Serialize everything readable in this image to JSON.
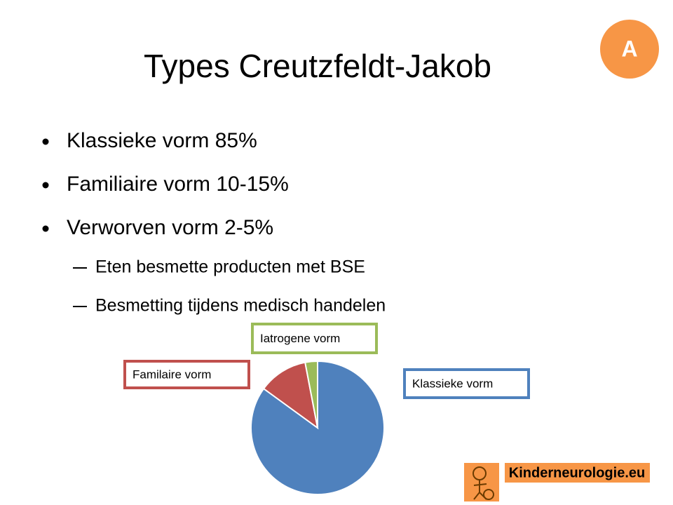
{
  "title": "Types Creutzfeldt-Jakob",
  "badge": "A",
  "bullets": [
    "Klassieke vorm 85%",
    "Familiaire vorm 10-15%",
    "Verworven vorm 2-5%"
  ],
  "subbullets": [
    "Eten besmette producten met BSE",
    "Besmetting tijdens medisch handelen"
  ],
  "logo": "Kinderneurologie.eu",
  "chart_data": {
    "type": "pie",
    "categories": [
      "Klassieke vorm",
      "Familaire vorm",
      "Iatrogene vorm"
    ],
    "values": [
      85,
      12,
      3
    ],
    "colors": [
      "#4f81bd",
      "#c0504d",
      "#9bbb59"
    ]
  }
}
